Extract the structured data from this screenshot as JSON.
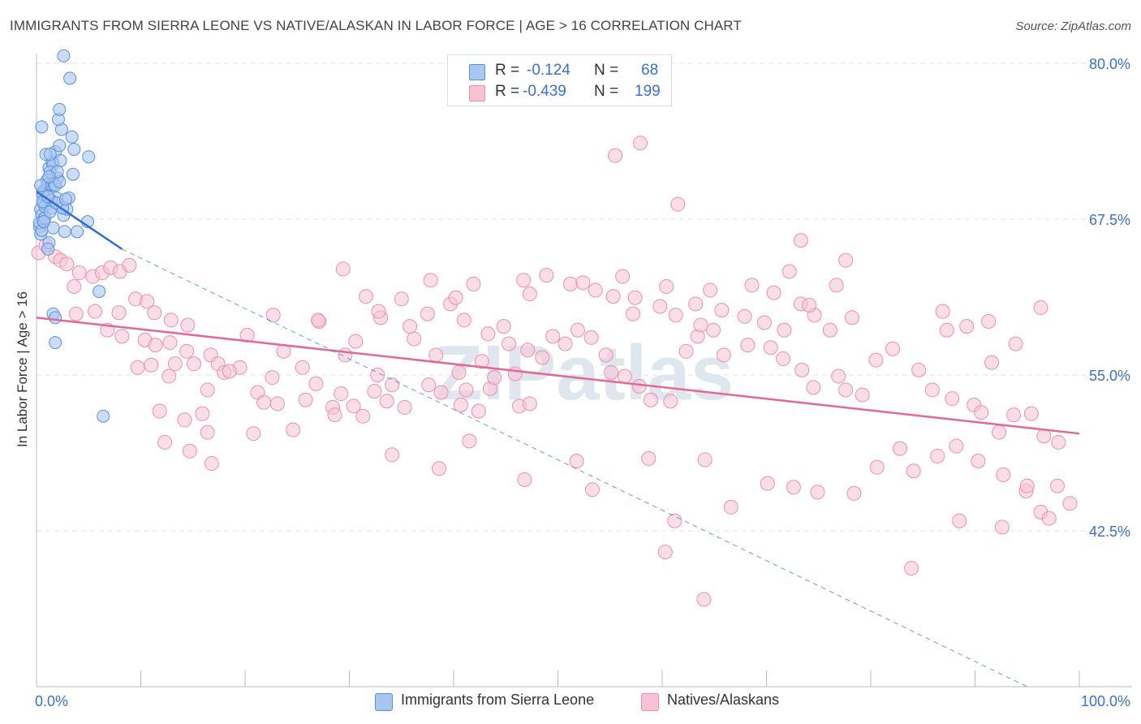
{
  "header": {
    "title": "IMMIGRANTS FROM SIERRA LEONE VS NATIVE/ALASKAN IN LABOR FORCE | AGE > 16 CORRELATION CHART",
    "source": "Source: ZipAtlas.com"
  },
  "legend": {
    "rows": [
      {
        "r_label": "R =",
        "r_value": "-0.124",
        "n_label": "N =",
        "n_value": "68",
        "color": "#a9c6f0"
      },
      {
        "r_label": "R =",
        "r_value": "-0.439",
        "n_label": "N =",
        "n_value": "199",
        "color": "#f6b8cb"
      }
    ]
  },
  "bottom_legend": [
    {
      "label": "Immigrants from Sierra Leone",
      "color": "#a9c6f0"
    },
    {
      "label": "Natives/Alaskans",
      "color": "#f6b8cb"
    }
  ],
  "colors": {
    "blue_fill": "#a9c6f0",
    "blue_stroke": "#5b8fde",
    "blue_line": "#2f6fd6",
    "pink_fill": "#f6c3d3",
    "pink_stroke": "#ec8fae",
    "pink_line": "#e56892",
    "tick_text": "#3b6fd4",
    "grid": "#e3e3e3"
  },
  "chart_data": {
    "type": "scatter",
    "title": "IMMIGRANTS FROM SIERRA LEONE VS NATIVE/ALASKAN IN LABOR FORCE | AGE > 16 CORRELATION CHART",
    "ylabel": "In Labor Force | Age > 16",
    "xlabel": "",
    "xlim": [
      0,
      100
    ],
    "ylim": [
      30,
      80
    ],
    "x_tick_labels": [
      "0.0%",
      "100.0%"
    ],
    "y_ticks": [
      42.5,
      55.0,
      67.5,
      80.0
    ],
    "y_tick_labels": [
      "42.5%",
      "55.0%",
      "67.5%",
      "80.0%"
    ],
    "grid": true,
    "watermark": "ZIPatlas",
    "series": [
      {
        "name": "Immigrants from Sierra Leone",
        "r": -0.124,
        "n": 68,
        "trend_solid": [
          [
            0,
            69.7
          ],
          [
            8.2,
            65.1
          ]
        ],
        "trend_dashed": [
          [
            8.2,
            65.1
          ],
          [
            95,
            30
          ]
        ],
        "points": [
          [
            0.4,
            68.3
          ],
          [
            0.6,
            67.4
          ],
          [
            0.8,
            69.9
          ],
          [
            0.5,
            67.8
          ],
          [
            1.0,
            70.6
          ],
          [
            1.2,
            71.6
          ],
          [
            0.9,
            69.1
          ],
          [
            1.5,
            72.1
          ],
          [
            1.1,
            70.3
          ],
          [
            0.7,
            68.8
          ],
          [
            1.6,
            71.9
          ],
          [
            2.0,
            70.8
          ],
          [
            0.3,
            66.9
          ],
          [
            1.8,
            72.9
          ],
          [
            2.2,
            73.4
          ],
          [
            0.5,
            74.9
          ],
          [
            1.3,
            71.3
          ],
          [
            0.6,
            69.7
          ],
          [
            1.4,
            70.2
          ],
          [
            2.3,
            72.2
          ],
          [
            0.8,
            68.5
          ],
          [
            1.9,
            69.2
          ],
          [
            2.6,
            67.8
          ],
          [
            3.1,
            69.2
          ],
          [
            1.0,
            69.4
          ],
          [
            0.4,
            66.3
          ],
          [
            1.7,
            70.3
          ],
          [
            0.9,
            72.7
          ],
          [
            1.6,
            66.8
          ],
          [
            2.4,
            74.7
          ],
          [
            2.1,
            75.5
          ],
          [
            3.4,
            74.1
          ],
          [
            3.5,
            71.1
          ],
          [
            4.9,
            67.3
          ],
          [
            2.9,
            68.3
          ],
          [
            1.5,
            68.4
          ],
          [
            0.6,
            69.5
          ],
          [
            1.8,
            70.2
          ],
          [
            0.3,
            67.2
          ],
          [
            1.2,
            65.6
          ],
          [
            2.2,
            76.3
          ],
          [
            3.2,
            78.8
          ],
          [
            2.6,
            80.6
          ],
          [
            1.3,
            72.7
          ],
          [
            5.0,
            72.5
          ],
          [
            1.6,
            59.9
          ],
          [
            1.8,
            59.6
          ],
          [
            1.8,
            57.6
          ],
          [
            6.0,
            61.7
          ],
          [
            6.4,
            51.7
          ],
          [
            3.6,
            73.1
          ],
          [
            2.2,
            70.5
          ],
          [
            0.5,
            66.6
          ],
          [
            1.1,
            65.1
          ],
          [
            2.0,
            71.3
          ],
          [
            1.4,
            69.0
          ],
          [
            0.8,
            67.6
          ],
          [
            2.7,
            66.5
          ],
          [
            1.2,
            70.9
          ],
          [
            0.6,
            68.9
          ],
          [
            3.9,
            66.5
          ],
          [
            1.3,
            68.1
          ],
          [
            2.5,
            68.4
          ],
          [
            0.7,
            67.3
          ],
          [
            1.9,
            68.8
          ],
          [
            1.1,
            69.3
          ],
          [
            0.4,
            70.2
          ],
          [
            2.8,
            69.1
          ]
        ]
      },
      {
        "name": "Natives/Alaskans",
        "r": -0.439,
        "n": 199,
        "trend": [
          [
            0,
            59.6
          ],
          [
            100,
            50.3
          ]
        ],
        "points": [
          [
            0.2,
            64.8
          ],
          [
            0.9,
            65.4
          ],
          [
            1.8,
            64.5
          ],
          [
            2.3,
            64.2
          ],
          [
            2.9,
            63.9
          ],
          [
            3.6,
            62.1
          ],
          [
            4.1,
            63.2
          ],
          [
            5.4,
            62.9
          ],
          [
            6.3,
            63.2
          ],
          [
            7.1,
            63.6
          ],
          [
            8.0,
            63.3
          ],
          [
            8.9,
            63.8
          ],
          [
            3.8,
            59.9
          ],
          [
            5.6,
            60.1
          ],
          [
            7.9,
            60.0
          ],
          [
            9.5,
            61.1
          ],
          [
            10.6,
            60.9
          ],
          [
            11.3,
            60.0
          ],
          [
            12.9,
            59.4
          ],
          [
            14.5,
            59.0
          ],
          [
            6.8,
            58.6
          ],
          [
            8.2,
            58.1
          ],
          [
            10.4,
            57.8
          ],
          [
            11.4,
            57.4
          ],
          [
            12.8,
            57.6
          ],
          [
            14.4,
            56.9
          ],
          [
            15.1,
            55.9
          ],
          [
            16.7,
            56.6
          ],
          [
            17.4,
            55.9
          ],
          [
            18.0,
            55.2
          ],
          [
            19.5,
            55.6
          ],
          [
            21.2,
            53.6
          ],
          [
            22.6,
            54.8
          ],
          [
            23.7,
            56.9
          ],
          [
            25.5,
            55.6
          ],
          [
            25.8,
            53.0
          ],
          [
            24.6,
            50.6
          ],
          [
            23.1,
            52.7
          ],
          [
            21.8,
            52.8
          ],
          [
            20.8,
            50.3
          ],
          [
            18.5,
            55.3
          ],
          [
            16.4,
            53.8
          ],
          [
            15.9,
            51.9
          ],
          [
            14.2,
            51.4
          ],
          [
            16.4,
            50.4
          ],
          [
            13.3,
            55.9
          ],
          [
            11.8,
            52.1
          ],
          [
            12.3,
            49.6
          ],
          [
            14.7,
            48.9
          ],
          [
            16.8,
            47.9
          ],
          [
            12.7,
            54.9
          ],
          [
            11.0,
            55.8
          ],
          [
            9.7,
            55.6
          ],
          [
            26.8,
            54.3
          ],
          [
            28.4,
            52.4
          ],
          [
            29.2,
            53.5
          ],
          [
            31.3,
            51.7
          ],
          [
            32.4,
            53.7
          ],
          [
            33.6,
            52.9
          ],
          [
            35.3,
            52.4
          ],
          [
            37.6,
            54.2
          ],
          [
            38.8,
            53.6
          ],
          [
            40.7,
            52.6
          ],
          [
            42.4,
            52.1
          ],
          [
            43.5,
            53.9
          ],
          [
            45.9,
            55.1
          ],
          [
            46.3,
            52.5
          ],
          [
            47.3,
            52.7
          ],
          [
            29.6,
            56.6
          ],
          [
            28.6,
            51.8
          ],
          [
            30.4,
            52.5
          ],
          [
            32.7,
            55.0
          ],
          [
            34.1,
            54.2
          ],
          [
            36.2,
            57.9
          ],
          [
            38.3,
            56.6
          ],
          [
            40.5,
            55.2
          ],
          [
            41.2,
            53.8
          ],
          [
            42.7,
            56.1
          ],
          [
            43.9,
            54.8
          ],
          [
            45.3,
            57.5
          ],
          [
            47.1,
            57.0
          ],
          [
            48.5,
            56.4
          ],
          [
            49.5,
            58.1
          ],
          [
            50.7,
            57.5
          ],
          [
            51.9,
            58.6
          ],
          [
            53.2,
            58.0
          ],
          [
            54.6,
            56.6
          ],
          [
            55.1,
            55.2
          ],
          [
            56.4,
            54.9
          ],
          [
            57.8,
            54.1
          ],
          [
            58.9,
            53.0
          ],
          [
            60.8,
            52.9
          ],
          [
            62.3,
            56.9
          ],
          [
            63.4,
            58.1
          ],
          [
            64.9,
            58.6
          ],
          [
            65.9,
            56.6
          ],
          [
            68.2,
            57.4
          ],
          [
            70.4,
            57.2
          ],
          [
            71.6,
            56.3
          ],
          [
            73.4,
            55.4
          ],
          [
            74.5,
            54.0
          ],
          [
            76.9,
            54.9
          ],
          [
            77.6,
            53.8
          ],
          [
            79.2,
            53.4
          ],
          [
            80.5,
            56.2
          ],
          [
            82.1,
            57.1
          ],
          [
            84.6,
            55.4
          ],
          [
            85.9,
            53.8
          ],
          [
            87.8,
            53.1
          ],
          [
            89.9,
            52.6
          ],
          [
            90.6,
            52.0
          ],
          [
            92.3,
            50.4
          ],
          [
            93.7,
            51.8
          ],
          [
            95.4,
            51.9
          ],
          [
            96.6,
            50.1
          ],
          [
            98.0,
            49.6
          ],
          [
            20.2,
            58.2
          ],
          [
            22.7,
            59.8
          ],
          [
            27.1,
            59.3
          ],
          [
            30.6,
            57.7
          ],
          [
            33.0,
            59.6
          ],
          [
            35.8,
            58.9
          ],
          [
            37.5,
            59.9
          ],
          [
            39.7,
            60.7
          ],
          [
            41.0,
            59.4
          ],
          [
            43.3,
            58.3
          ],
          [
            44.8,
            58.9
          ],
          [
            46.7,
            62.6
          ],
          [
            48.9,
            63.0
          ],
          [
            51.2,
            62.3
          ],
          [
            53.6,
            61.8
          ],
          [
            55.3,
            61.3
          ],
          [
            57.2,
            59.9
          ],
          [
            59.8,
            60.5
          ],
          [
            61.3,
            59.8
          ],
          [
            63.7,
            59.0
          ],
          [
            65.7,
            60.2
          ],
          [
            67.9,
            59.7
          ],
          [
            69.8,
            59.2
          ],
          [
            71.7,
            58.6
          ],
          [
            73.3,
            60.7
          ],
          [
            74.6,
            59.8
          ],
          [
            76.1,
            58.6
          ],
          [
            78.2,
            59.6
          ],
          [
            27.0,
            59.4
          ],
          [
            31.6,
            61.3
          ],
          [
            32.8,
            60.1
          ],
          [
            29.4,
            63.5
          ],
          [
            35.0,
            61.1
          ],
          [
            37.8,
            62.6
          ],
          [
            40.2,
            61.2
          ],
          [
            41.9,
            62.3
          ],
          [
            47.3,
            61.5
          ],
          [
            52.4,
            62.4
          ],
          [
            56.2,
            62.9
          ],
          [
            57.4,
            61.2
          ],
          [
            60.4,
            62.1
          ],
          [
            63.2,
            60.7
          ],
          [
            64.6,
            61.8
          ],
          [
            68.6,
            62.2
          ],
          [
            70.7,
            61.6
          ],
          [
            72.2,
            63.3
          ],
          [
            74.1,
            60.6
          ],
          [
            76.7,
            62.2
          ],
          [
            86.9,
            60.1
          ],
          [
            87.3,
            58.6
          ],
          [
            89.2,
            58.9
          ],
          [
            91.3,
            59.3
          ],
          [
            91.6,
            56.0
          ],
          [
            93.9,
            57.5
          ],
          [
            96.3,
            60.4
          ],
          [
            55.5,
            72.6
          ],
          [
            57.9,
            73.6
          ],
          [
            61.5,
            68.7
          ],
          [
            73.3,
            65.8
          ],
          [
            77.6,
            64.2
          ],
          [
            34.1,
            48.6
          ],
          [
            38.6,
            47.5
          ],
          [
            41.5,
            49.7
          ],
          [
            46.8,
            46.6
          ],
          [
            51.8,
            48.1
          ],
          [
            53.3,
            45.8
          ],
          [
            58.7,
            48.3
          ],
          [
            61.2,
            43.3
          ],
          [
            64.1,
            48.2
          ],
          [
            66.6,
            44.4
          ],
          [
            70.1,
            46.3
          ],
          [
            72.6,
            46.0
          ],
          [
            74.9,
            45.6
          ],
          [
            78.4,
            45.5
          ],
          [
            80.6,
            47.6
          ],
          [
            82.8,
            49.1
          ],
          [
            84.1,
            47.3
          ],
          [
            86.4,
            48.5
          ],
          [
            88.2,
            49.3
          ],
          [
            90.3,
            48.1
          ],
          [
            92.7,
            47.0
          ],
          [
            94.9,
            45.7
          ],
          [
            96.3,
            44.0
          ],
          [
            97.9,
            46.1
          ],
          [
            99.1,
            44.7
          ],
          [
            60.3,
            40.8
          ],
          [
            64.0,
            37.0
          ],
          [
            83.9,
            39.5
          ],
          [
            88.5,
            43.3
          ],
          [
            92.6,
            42.8
          ],
          [
            95.0,
            46.1
          ],
          [
            97.1,
            43.5
          ]
        ]
      }
    ]
  }
}
